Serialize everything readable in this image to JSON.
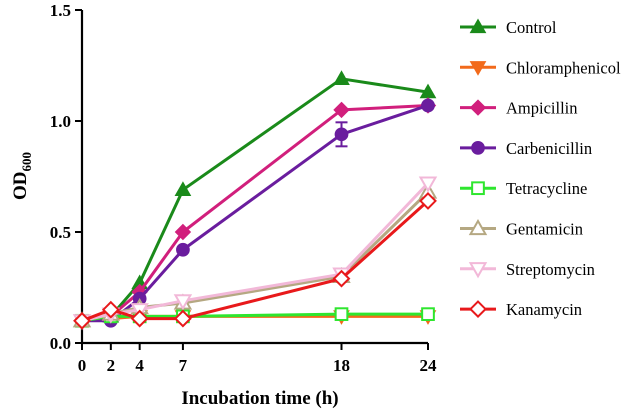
{
  "chart_data": {
    "type": "line",
    "title": "",
    "xlabel": "Incubation time (h)",
    "ylabel_main": "OD",
    "ylabel_sub": "600",
    "x": [
      0,
      2,
      4,
      7,
      18,
      24
    ],
    "xlim": [
      0,
      24
    ],
    "ylim": [
      0,
      1.5
    ],
    "x_ticks": [
      "0",
      "2",
      "4",
      "7",
      "18",
      "24"
    ],
    "y_ticks": [
      "0.0",
      "0.5",
      "1.0",
      "1.5"
    ],
    "y_tick_values": [
      0,
      0.5,
      1.0,
      1.5
    ],
    "grid": false,
    "legend_position": "right",
    "series": [
      {
        "name": "Control",
        "color": "#1a8a1a",
        "marker": "triangle-up",
        "values": [
          0.1,
          0.12,
          0.27,
          0.69,
          1.19,
          1.13
        ]
      },
      {
        "name": "Chloramphenicol",
        "color": "#f26a1b",
        "marker": "triangle-down",
        "values": [
          0.1,
          0.11,
          0.12,
          0.12,
          0.12,
          0.12
        ]
      },
      {
        "name": "Ampicillin",
        "color": "#d11f7c",
        "marker": "diamond",
        "values": [
          0.1,
          0.12,
          0.23,
          0.5,
          1.05,
          1.07
        ]
      },
      {
        "name": "Carbenicillin",
        "color": "#6a1d9e",
        "marker": "circle",
        "values": [
          0.1,
          0.1,
          0.2,
          0.42,
          0.94,
          1.07
        ]
      },
      {
        "name": "Tetracycline",
        "color": "#2ee62e",
        "marker": "square-open",
        "values": [
          0.1,
          0.12,
          0.12,
          0.12,
          0.13,
          0.13
        ]
      },
      {
        "name": "Gentamicin",
        "color": "#b5a882",
        "marker": "triangle-up-open",
        "values": [
          0.1,
          0.13,
          0.16,
          0.18,
          0.3,
          0.68
        ]
      },
      {
        "name": "Streptomycin",
        "color": "#f2b8d8",
        "marker": "triangle-down-open",
        "values": [
          0.1,
          0.13,
          0.15,
          0.19,
          0.31,
          0.72
        ]
      },
      {
        "name": "Kanamycin",
        "color": "#e8191b",
        "marker": "diamond-open",
        "values": [
          0.1,
          0.15,
          0.11,
          0.11,
          0.29,
          0.64
        ]
      }
    ]
  }
}
